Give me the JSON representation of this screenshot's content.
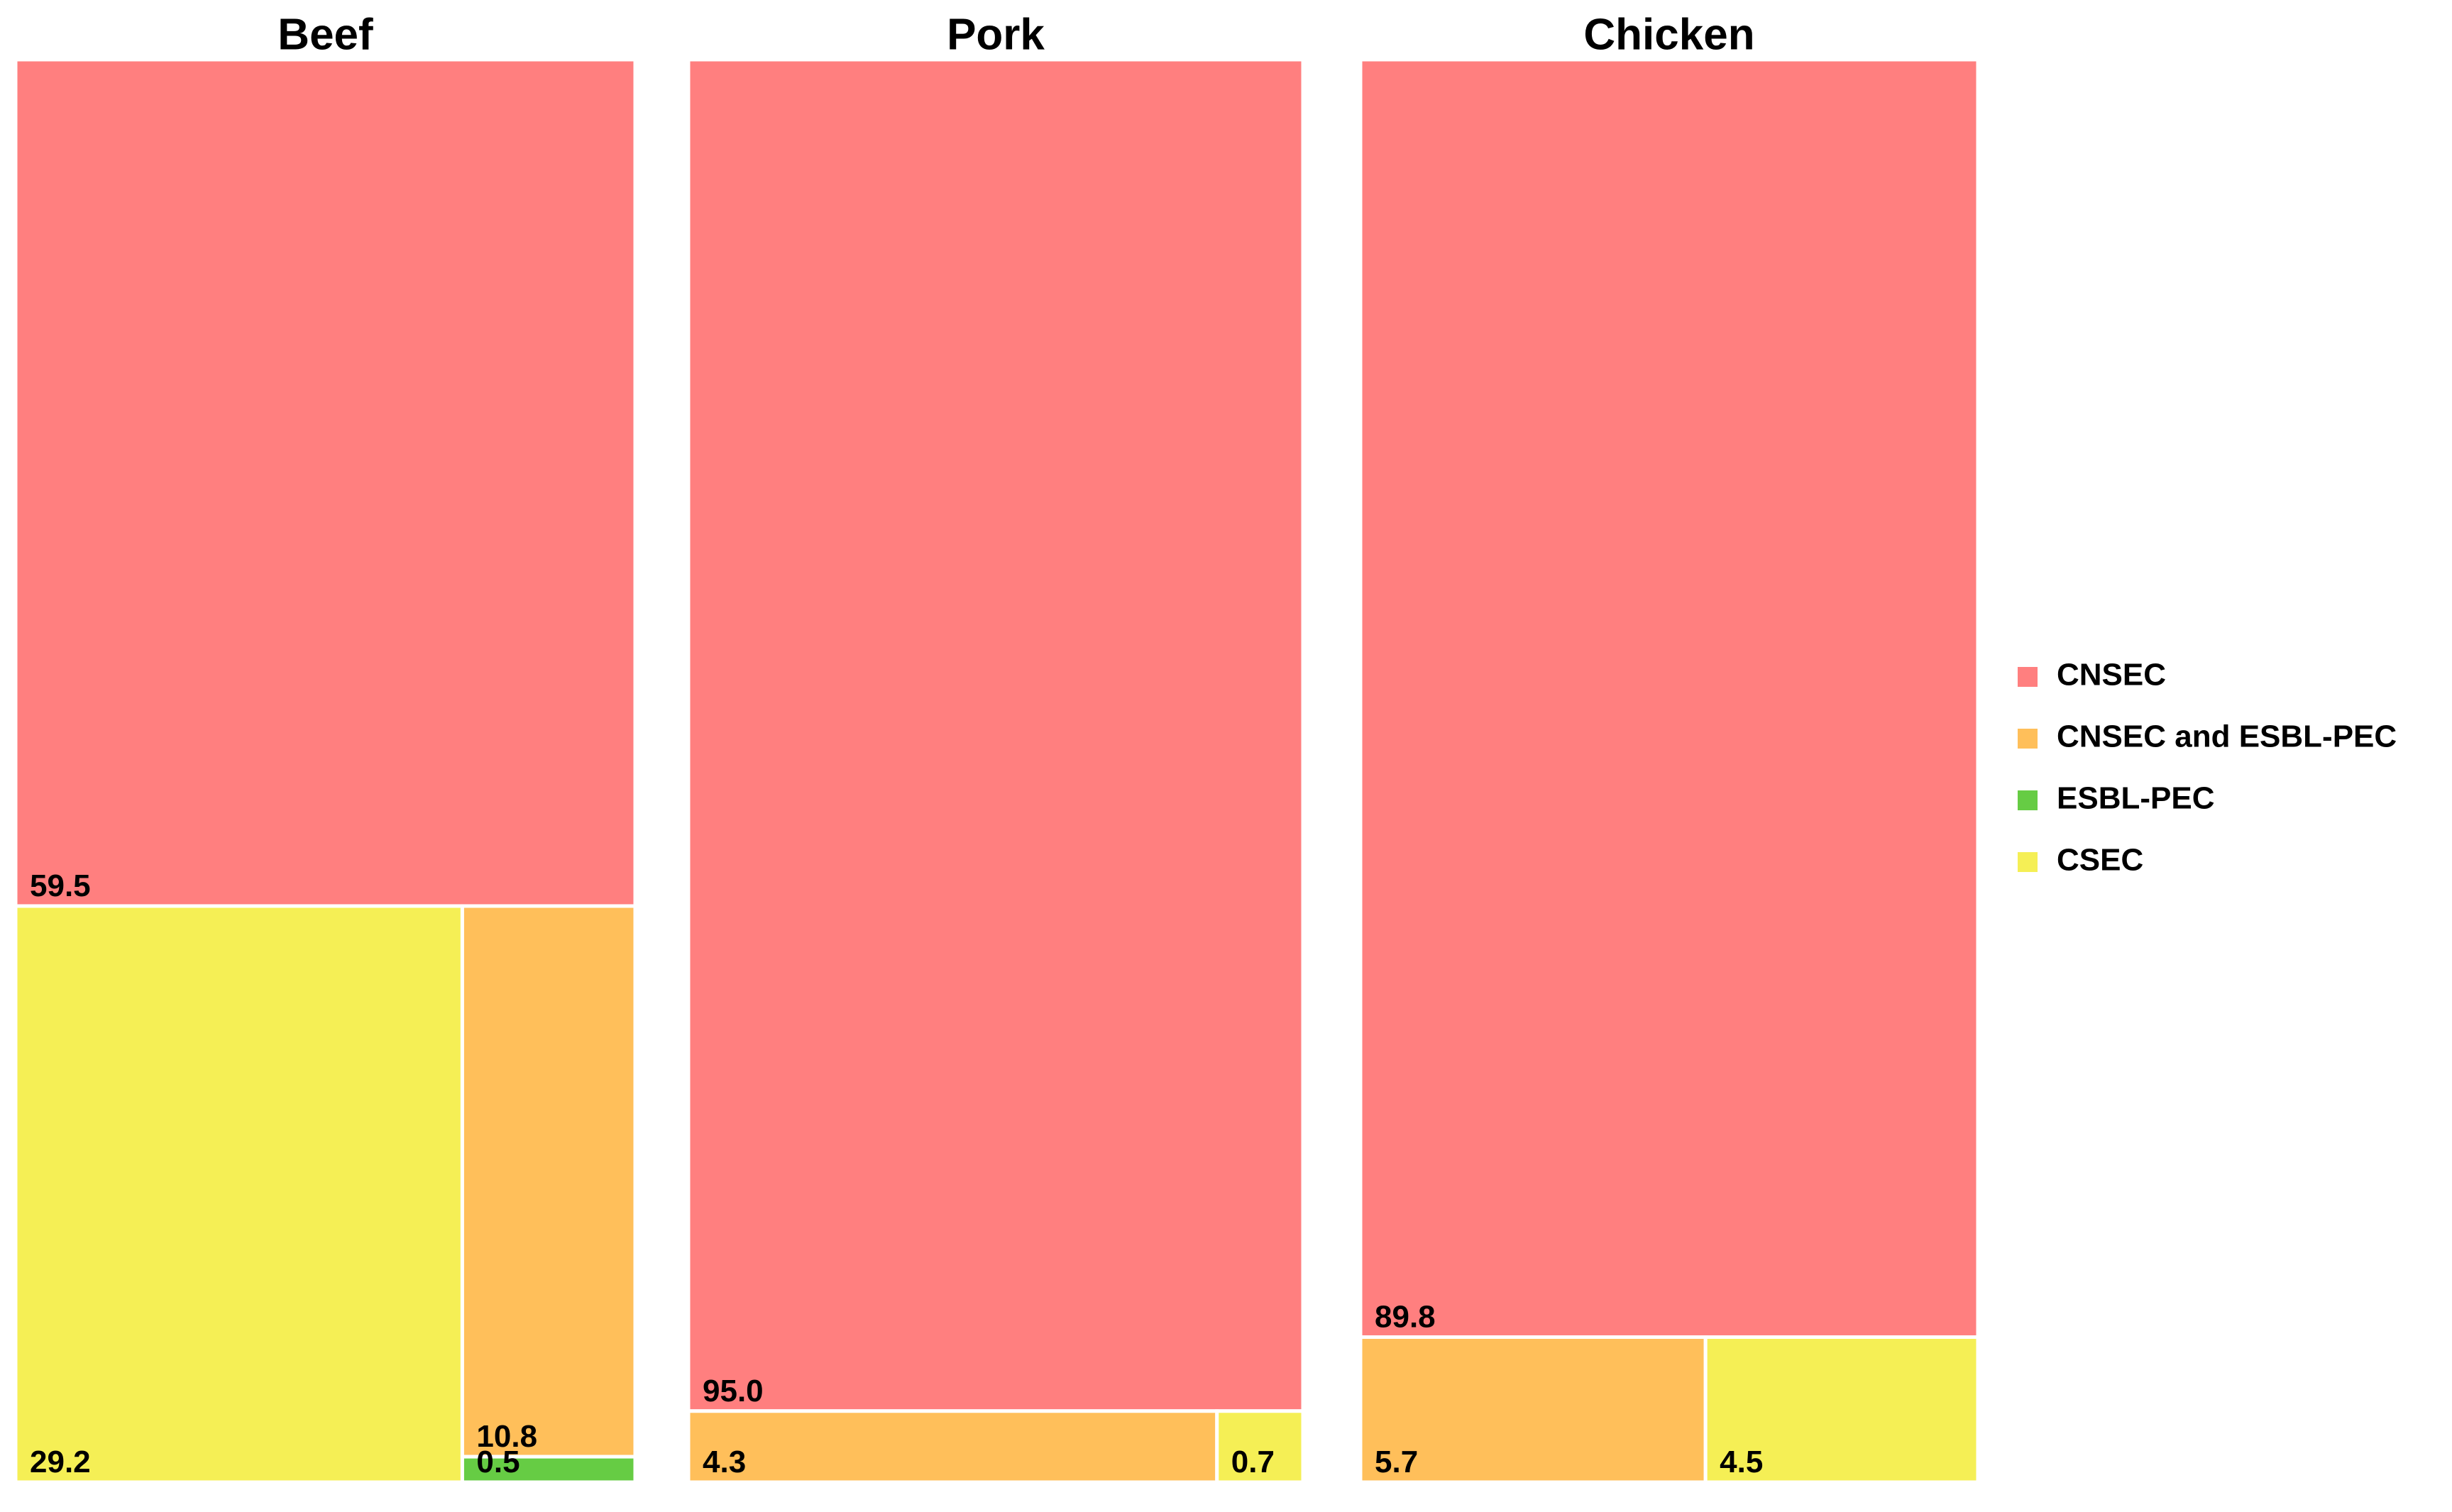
{
  "chart_data": [
    {
      "type": "treemap",
      "title": "Beef",
      "categories": [
        "CNSEC",
        "CSEC",
        "CNSEC and ESBL-PEC",
        "ESBL-PEC"
      ],
      "values": [
        59.5,
        29.2,
        10.8,
        0.5
      ],
      "colors": [
        "#ff7f7f",
        "#f5ef55",
        "#ffbf5a",
        "#66cc44"
      ]
    },
    {
      "type": "treemap",
      "title": "Pork",
      "categories": [
        "CNSEC",
        "CNSEC and ESBL-PEC",
        "CSEC"
      ],
      "values": [
        95,
        4.3,
        0.7
      ],
      "value_labels": [
        "95.0",
        "4.3",
        "0.7"
      ],
      "colors": [
        "#ff7f7f",
        "#ffbf5a",
        "#f5ef55"
      ]
    },
    {
      "type": "treemap",
      "title": "Chicken",
      "categories": [
        "CNSEC",
        "CNSEC and ESBL-PEC",
        "CSEC"
      ],
      "values": [
        89.8,
        5.7,
        4.5
      ],
      "colors": [
        "#ff7f7f",
        "#ffbf5a",
        "#f5ef55"
      ]
    }
  ],
  "legend": {
    "labels": [
      "CNSEC",
      "CNSEC and ESBL-PEC",
      "ESBL-PEC",
      "CSEC"
    ],
    "colors": [
      "#ff7f7f",
      "#ffbf5a",
      "#66cc44",
      "#f5ef55"
    ],
    "position": "right"
  }
}
